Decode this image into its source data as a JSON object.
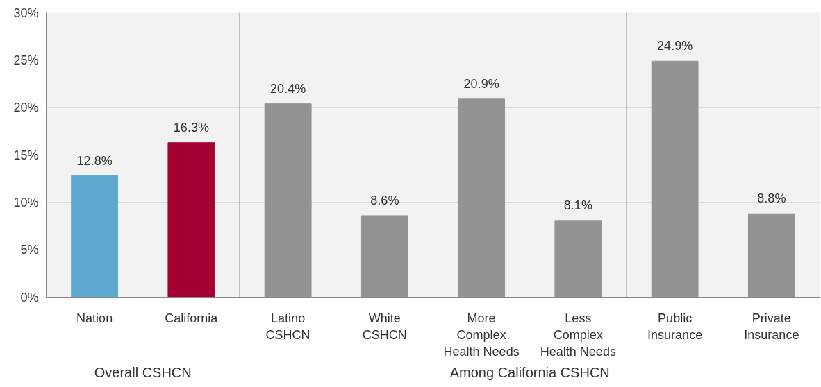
{
  "chart_data": {
    "type": "bar",
    "categories": [
      "Nation",
      "California",
      "Latino\nCSHCN",
      "White\nCSHCN",
      "More\nComplex\nHealth Needs",
      "Less\nComplex\nHealth Needs",
      "Public\nInsurance",
      "Private\nInsurance"
    ],
    "values": [
      12.8,
      16.3,
      20.4,
      8.6,
      20.9,
      8.1,
      24.9,
      8.8
    ],
    "colors": [
      "#5ea8d0",
      "#a50034",
      "#939393",
      "#939393",
      "#939393",
      "#939393",
      "#939393",
      "#939393"
    ],
    "value_labels": [
      "12.8%",
      "16.3%",
      "20.4%",
      "8.6%",
      "20.9%",
      "8.1%",
      "24.9%",
      "8.8%"
    ],
    "ylim": [
      0,
      30
    ],
    "yticks": [
      {
        "value": 0,
        "label": "0%"
      },
      {
        "value": 5,
        "label": "5%"
      },
      {
        "value": 10,
        "label": "10%"
      },
      {
        "value": 15,
        "label": "15%"
      },
      {
        "value": 20,
        "label": "20%"
      },
      {
        "value": 25,
        "label": "25%"
      },
      {
        "value": 30,
        "label": "30%"
      }
    ],
    "annotations": [
      "Overall CSHCN",
      "Among California CSHCN"
    ],
    "grid": "y"
  }
}
